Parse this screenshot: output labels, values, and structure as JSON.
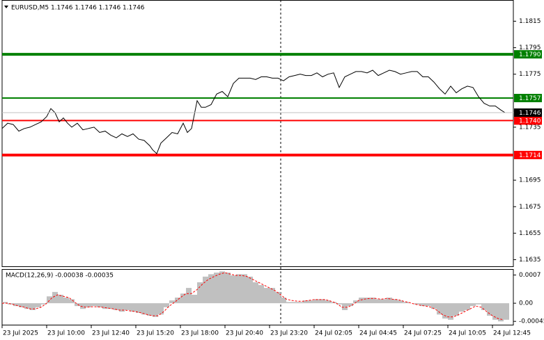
{
  "chart_data": [
    {
      "type": "line",
      "title": "EURUSD,M5  1.1746 1.1746 1.1746 1.1746",
      "x": [
        0,
        4,
        8,
        12,
        16,
        20,
        24,
        28,
        32,
        35,
        38,
        41,
        44,
        47,
        50,
        54,
        58,
        62,
        66,
        70,
        74,
        78,
        82,
        86,
        90,
        94,
        98,
        102,
        106,
        108,
        111,
        114,
        118,
        122,
        126,
        130,
        133,
        136,
        140,
        143,
        146,
        150,
        154,
        158,
        162,
        166,
        170,
        174,
        178,
        182,
        186,
        190,
        194,
        198,
        202,
        206,
        210,
        214,
        218,
        222,
        226,
        230,
        234,
        238,
        242,
        246,
        250,
        254,
        258,
        262,
        266,
        270,
        274,
        278,
        282,
        286,
        290,
        294,
        298,
        302,
        306,
        310,
        314,
        318,
        322,
        326,
        330,
        334,
        338,
        342,
        346,
        350,
        354,
        358,
        361
      ],
      "series": [
        {
          "color": "#000000",
          "values": [
            1.1734,
            1.1738,
            1.1737,
            1.1732,
            1.1734,
            1.1735,
            1.1737,
            1.1739,
            1.1743,
            1.1749,
            1.1746,
            1.1739,
            1.1742,
            1.1738,
            1.1735,
            1.1738,
            1.1733,
            1.1734,
            1.1735,
            1.1731,
            1.1732,
            1.1729,
            1.1727,
            1.173,
            1.1728,
            1.173,
            1.1726,
            1.1725,
            1.1721,
            1.1718,
            1.1715,
            1.1723,
            1.1727,
            1.1731,
            1.173,
            1.1738,
            1.1731,
            1.1734,
            1.1755,
            1.175,
            1.175,
            1.1752,
            1.176,
            1.1762,
            1.1758,
            1.1768,
            1.1772,
            1.1772,
            1.1772,
            1.1771,
            1.1773,
            1.1773,
            1.1772,
            1.1772,
            1.177,
            1.1773,
            1.1774,
            1.1775,
            1.1774,
            1.1774,
            1.1776,
            1.1773,
            1.1775,
            1.1776,
            1.1765,
            1.1773,
            1.1775,
            1.1777,
            1.1777,
            1.1776,
            1.1778,
            1.1774,
            1.1776,
            1.1778,
            1.1777,
            1.1775,
            1.1776,
            1.1777,
            1.1777,
            1.1773,
            1.1773,
            1.1769,
            1.1764,
            1.176,
            1.1766,
            1.1761,
            1.1764,
            1.1766,
            1.1765,
            1.1758,
            1.1753,
            1.1751,
            1.1751,
            1.1748,
            1.1746
          ]
        }
      ],
      "xlim": [
        0,
        367
      ],
      "ylim": [
        1.163,
        1.1831
      ],
      "yticks": [
        1.1815,
        1.1795,
        1.1775,
        1.1735,
        1.1695,
        1.1675,
        1.1655,
        1.1635
      ],
      "levels": [
        {
          "value": 1.179,
          "label": "1.1790",
          "color": "#008000",
          "width": 4
        },
        {
          "value": 1.1757,
          "label": "1.1757",
          "color": "#008000",
          "width": 2
        },
        {
          "value": 1.174,
          "label": "1.1740",
          "color": "#ff0000",
          "width": 2
        },
        {
          "value": 1.1714,
          "label": "1.1714",
          "color": "#ff0000",
          "width": 4
        }
      ],
      "current_price": {
        "value": 1.1746,
        "label": "1.1746",
        "color": "#000000"
      }
    },
    {
      "type": "macd",
      "title": "MACD(12,26,9) -0.00038 -0.00035",
      "x": [
        0,
        4,
        8,
        12,
        16,
        20,
        24,
        28,
        32,
        36,
        40,
        44,
        48,
        52,
        56,
        60,
        64,
        68,
        72,
        76,
        80,
        84,
        88,
        92,
        96,
        100,
        104,
        108,
        112,
        116,
        120,
        124,
        128,
        132,
        136,
        140,
        144,
        148,
        152,
        156,
        160,
        164,
        168,
        172,
        176,
        180,
        184,
        188,
        192,
        196,
        200,
        204,
        208,
        212,
        216,
        220,
        224,
        228,
        232,
        236,
        240,
        244,
        248,
        252,
        256,
        260,
        264,
        268,
        272,
        276,
        280,
        284,
        288,
        292,
        296,
        300,
        304,
        308,
        312,
        316,
        320,
        324,
        328,
        332,
        336,
        340,
        344,
        348,
        352,
        356,
        360
      ],
      "series": [
        {
          "type": "bar",
          "color": "#c0c0c0",
          "values": [
            3e-05,
            -3e-05,
            -7e-05,
            -0.0001,
            -0.00014,
            -0.00017,
            -0.0001,
            -3e-05,
            0.00017,
            0.00028,
            0.00021,
            0.00014,
            0.0001,
            -7e-05,
            -0.00014,
            -0.0001,
            -7e-05,
            -0.0001,
            -0.00014,
            -0.00014,
            -0.00017,
            -0.00021,
            -0.00017,
            -0.00021,
            -0.00024,
            -0.00028,
            -0.00031,
            -0.00034,
            -0.00028,
            -0.0001,
            7e-05,
            0.00014,
            0.00024,
            0.00038,
            0.00021,
            0.00052,
            0.00066,
            0.00072,
            0.00076,
            0.00079,
            0.00076,
            0.00069,
            0.00072,
            0.00072,
            0.00066,
            0.00052,
            0.00045,
            0.00038,
            0.00038,
            0.00028,
            0.00014,
            3e-05,
            3e-05,
            3e-05,
            7e-05,
            7e-05,
            0.0001,
            0.0001,
            7e-05,
            3e-05,
            -3e-05,
            -0.00017,
            -7e-05,
            7e-05,
            0.00014,
            0.00014,
            0.00014,
            0.0001,
            0.0001,
            0.00014,
            0.0001,
            7e-05,
            3e-05,
            0,
            -3e-05,
            -7e-05,
            -7e-05,
            -0.00014,
            -0.00028,
            -0.00038,
            -0.00041,
            -0.00031,
            -0.00021,
            -0.00017,
            -7e-05,
            -3e-05,
            -0.00017,
            -0.00031,
            -0.00041,
            -0.00045,
            -0.00041
          ]
        },
        {
          "type": "line",
          "color": "#ff0000",
          "dash": true,
          "values": [
            0,
            0,
            -3e-05,
            -7e-05,
            -0.0001,
            -0.00014,
            -0.00014,
            -0.0001,
            0,
            0.00014,
            0.00021,
            0.00017,
            0.00014,
            3e-05,
            -7e-05,
            -0.0001,
            -9e-05,
            -9e-05,
            -0.0001,
            -0.00012,
            -0.00014,
            -0.00017,
            -0.00017,
            -0.00019,
            -0.00021,
            -0.00024,
            -0.00028,
            -0.00031,
            -0.00031,
            -0.00021,
            -7e-05,
            3e-05,
            0.00014,
            0.00024,
            0.00024,
            0.00034,
            0.00048,
            0.00059,
            0.00066,
            0.00072,
            0.00076,
            0.00072,
            0.00069,
            0.00069,
            0.00066,
            0.00059,
            0.00052,
            0.00045,
            0.00038,
            0.00031,
            0.00021,
            0.0001,
            7e-05,
            5e-05,
            5e-05,
            7e-05,
            9e-05,
            9e-05,
            9e-05,
            5e-05,
            0,
            -0.0001,
            -0.0001,
            -3e-05,
            7e-05,
            0.0001,
            0.00012,
            0.00012,
            0.0001,
            0.00012,
            0.0001,
            9e-05,
            5e-05,
            2e-05,
            -2e-05,
            -5e-05,
            -7e-05,
            -0.0001,
            -0.00017,
            -0.00028,
            -0.00034,
            -0.00034,
            -0.00028,
            -0.00021,
            -0.00014,
            -7e-05,
            -0.0001,
            -0.00021,
            -0.00031,
            -0.00038,
            -0.00041
          ]
        }
      ],
      "xlim": [
        0,
        367
      ],
      "ylim": [
        -0.00055,
        0.00083
      ],
      "yticks": [
        0.0007,
        {
          "value": 0,
          "label": "0.00"
        },
        -0.00045
      ],
      "xticks": [
        {
          "value": 0,
          "label": "23 Jul 2025"
        },
        {
          "value": 32,
          "label": "23 Jul 10:00"
        },
        {
          "value": 64,
          "label": "23 Jul 12:40"
        },
        {
          "value": 96,
          "label": "23 Jul 15:20"
        },
        {
          "value": 128,
          "label": "23 Jul 18:00"
        },
        {
          "value": 160,
          "label": "23 Jul 20:40"
        },
        {
          "value": 192,
          "label": "23 Jul 23:20"
        },
        {
          "value": 224,
          "label": "24 Jul 02:05"
        },
        {
          "value": 256,
          "label": "24 Jul 04:45"
        },
        {
          "value": 288,
          "label": "24 Jul 07:25"
        },
        {
          "value": 320,
          "label": "24 Jul 10:05"
        },
        {
          "value": 352,
          "label": "24 Jul 12:45"
        }
      ]
    }
  ]
}
